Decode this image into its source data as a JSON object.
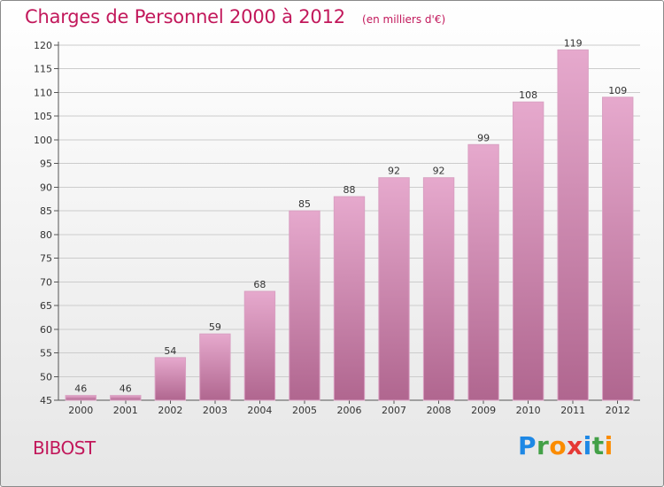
{
  "header": {
    "title": "Charges de Personnel 2000 à 2012",
    "subtitle": "(en milliers d'€)"
  },
  "footer": {
    "commune": "BIBOST",
    "logo_text": "Proxiti",
    "logo_letters": [
      {
        "char": "P",
        "color": "#1e88e5"
      },
      {
        "char": "r",
        "color": "#43a047"
      },
      {
        "char": "o",
        "color": "#fb8c00"
      },
      {
        "char": "x",
        "color": "#e53935"
      },
      {
        "char": "i",
        "color": "#1e88e5"
      },
      {
        "char": "t",
        "color": "#43a047"
      },
      {
        "char": "i",
        "color": "#fb8c00"
      }
    ]
  },
  "colors": {
    "accent": "#c2185b",
    "bar_top": "#e6a9cd",
    "bar_bottom": "#b0668f",
    "grid": "#cccccc"
  },
  "chart_data": {
    "type": "bar",
    "categories": [
      "2000",
      "2001",
      "2002",
      "2003",
      "2004",
      "2005",
      "2006",
      "2007",
      "2008",
      "2009",
      "2010",
      "2011",
      "2012"
    ],
    "values": [
      46,
      46,
      54,
      59,
      68,
      85,
      88,
      92,
      92,
      99,
      108,
      119,
      109
    ],
    "ylim": [
      45,
      120
    ],
    "yticks": [
      45,
      50,
      55,
      60,
      65,
      70,
      75,
      80,
      85,
      90,
      95,
      100,
      105,
      110,
      115,
      120
    ],
    "grid": true,
    "data_labels": true
  }
}
